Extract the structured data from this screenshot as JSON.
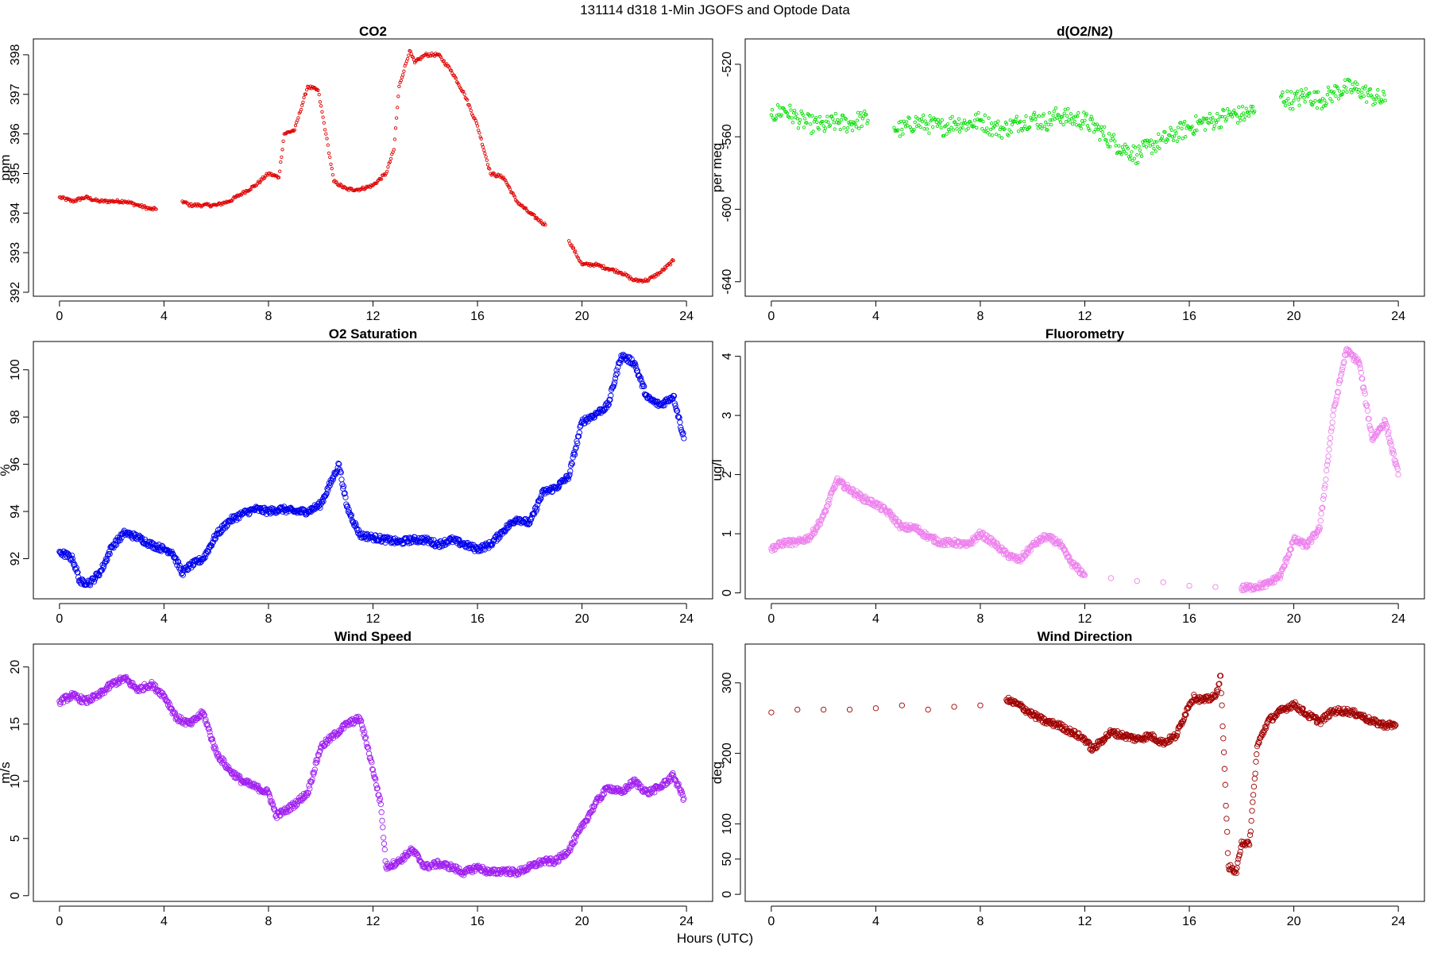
{
  "figure": {
    "title": "131114   d318   1-Min  JGOFS and Optode Data",
    "xlabel": "Hours (UTC)"
  },
  "chart_data": [
    {
      "type": "scatter",
      "title": "CO2",
      "ylabel": "ppm",
      "color": "#e00000",
      "marker": "small-circle",
      "xlim": [
        -1,
        25
      ],
      "ylim": [
        391.9,
        398.4
      ],
      "xticks": [
        0,
        4,
        8,
        12,
        16,
        20,
        24
      ],
      "yticks": [
        392,
        393,
        394,
        395,
        396,
        397,
        398
      ],
      "x": [
        0.0,
        0.5,
        1.0,
        1.5,
        2.0,
        2.5,
        3.0,
        3.5,
        3.7,
        4.7,
        5.0,
        5.5,
        6.0,
        6.5,
        7.0,
        7.5,
        8.0,
        8.4,
        8.6,
        9.0,
        9.5,
        9.9,
        10.2,
        10.5,
        11.0,
        11.5,
        12.0,
        12.5,
        12.8,
        13.0,
        13.4,
        13.6,
        14.0,
        14.5,
        15.0,
        15.5,
        16.0,
        16.5,
        17.0,
        17.5,
        18.0,
        18.6,
        19.5,
        20.0,
        20.5,
        21.0,
        21.5,
        22.0,
        22.5,
        23.0,
        23.5
      ],
      "y": [
        394.4,
        394.3,
        394.4,
        394.3,
        394.3,
        394.3,
        394.2,
        394.1,
        394.1,
        394.3,
        394.2,
        394.2,
        394.2,
        394.3,
        394.5,
        394.7,
        395.0,
        394.9,
        396.0,
        396.1,
        397.2,
        397.1,
        396.0,
        394.8,
        394.6,
        394.6,
        394.7,
        395.0,
        395.6,
        397.2,
        398.1,
        397.8,
        398.0,
        398.0,
        397.6,
        397.0,
        396.2,
        395.0,
        394.9,
        394.3,
        394.0,
        393.7,
        393.3,
        392.7,
        392.7,
        392.6,
        392.5,
        392.3,
        392.3,
        392.5,
        392.8
      ]
    },
    {
      "type": "scatter",
      "title": "d(O2/N2)",
      "ylabel": "per meg",
      "color": "#00dd00",
      "marker": "small-circle",
      "xlim": [
        -1,
        25
      ],
      "ylim": [
        -648,
        -506
      ],
      "xticks": [
        0,
        4,
        8,
        12,
        16,
        20,
        24
      ],
      "yticks": [
        -520,
        -560,
        -600,
        -640
      ],
      "x": [
        0.0,
        0.5,
        1.0,
        1.5,
        2.0,
        2.5,
        3.0,
        3.5,
        3.7,
        4.7,
        5.0,
        5.5,
        6.0,
        6.5,
        7.0,
        7.5,
        8.0,
        8.5,
        8.9,
        9.5,
        10.0,
        10.5,
        11.0,
        11.5,
        12.0,
        12.5,
        13.0,
        13.3,
        14.0,
        14.5,
        15.0,
        15.5,
        16.0,
        16.5,
        17.0,
        17.5,
        18.0,
        18.5,
        19.5,
        20.0,
        20.5,
        21.0,
        21.5,
        22.0,
        22.5,
        23.0,
        23.5
      ],
      "y": [
        -548,
        -545,
        -550,
        -553,
        -554,
        -552,
        -553,
        -550,
        -551,
        -555,
        -556,
        -552,
        -553,
        -555,
        -552,
        -553,
        -551,
        -555,
        -556,
        -552,
        -550,
        -552,
        -548,
        -550,
        -551,
        -556,
        -562,
        -565,
        -570,
        -565,
        -562,
        -558,
        -555,
        -552,
        -551,
        -548,
        -548,
        -546,
        -538,
        -540,
        -537,
        -540,
        -536,
        -533,
        -534,
        -538,
        -540
      ]
    },
    {
      "type": "scatter",
      "title": "O2 Saturation",
      "ylabel": "%",
      "color": "#0000ee",
      "marker": "large-circle",
      "xlim": [
        -1,
        25
      ],
      "ylim": [
        90.3,
        101.2
      ],
      "xticks": [
        0,
        4,
        8,
        12,
        16,
        20,
        24
      ],
      "yticks": [
        92,
        94,
        96,
        98,
        100
      ],
      "x": [
        0.0,
        0.5,
        0.8,
        1.2,
        1.6,
        2.0,
        2.5,
        3.0,
        3.5,
        4.0,
        4.3,
        4.7,
        5.0,
        5.5,
        6.0,
        6.5,
        7.0,
        7.5,
        8.0,
        8.5,
        9.0,
        9.5,
        10.0,
        10.5,
        10.7,
        11.0,
        11.5,
        12.0,
        12.5,
        13.0,
        13.5,
        14.0,
        14.5,
        15.0,
        15.5,
        16.0,
        16.5,
        17.0,
        17.5,
        18.0,
        18.5,
        19.0,
        19.5,
        20.0,
        20.5,
        21.0,
        21.5,
        22.0,
        22.5,
        23.0,
        23.5,
        23.9
      ],
      "y": [
        92.3,
        92.0,
        91.0,
        91.0,
        91.5,
        92.5,
        93.1,
        92.9,
        92.6,
        92.4,
        92.3,
        91.4,
        91.7,
        92.0,
        93.0,
        93.6,
        93.9,
        94.1,
        94.0,
        94.1,
        94.0,
        94.0,
        94.3,
        95.5,
        96.0,
        94.2,
        93.0,
        92.9,
        92.8,
        92.7,
        92.8,
        92.8,
        92.6,
        92.8,
        92.6,
        92.4,
        92.6,
        93.2,
        93.7,
        93.5,
        94.8,
        95.0,
        95.5,
        97.8,
        98.1,
        98.5,
        100.6,
        100.3,
        98.8,
        98.5,
        98.9,
        97.1
      ]
    },
    {
      "type": "scatter",
      "title": "Fluorometry",
      "ylabel": "ug/l",
      "color": "#ee82ee",
      "marker": "large-circle",
      "xlim": [
        -1,
        25
      ],
      "ylim": [
        -0.1,
        4.25
      ],
      "xticks": [
        0,
        4,
        8,
        12,
        16,
        20,
        24
      ],
      "yticks": [
        0,
        1,
        2,
        3,
        4
      ],
      "x": [
        0.0,
        0.5,
        1.0,
        1.5,
        2.0,
        2.5,
        3.0,
        3.5,
        4.0,
        4.5,
        5.0,
        5.5,
        6.0,
        6.5,
        7.0,
        7.5,
        8.0,
        8.5,
        9.0,
        9.5,
        10.0,
        10.5,
        11.0,
        11.5,
        12.0,
        13.0,
        14.0,
        15.0,
        16.0,
        17.0,
        18.0,
        18.5,
        19.0,
        19.5,
        20.0,
        20.5,
        21.0,
        21.5,
        22.0,
        22.5,
        23.0,
        23.5,
        24.0
      ],
      "y": [
        0.75,
        0.85,
        0.85,
        0.95,
        1.3,
        1.9,
        1.75,
        1.6,
        1.5,
        1.35,
        1.1,
        1.1,
        0.95,
        0.85,
        0.85,
        0.8,
        1.0,
        0.85,
        0.65,
        0.55,
        0.8,
        0.95,
        0.85,
        0.5,
        0.3,
        0.25,
        0.2,
        0.18,
        0.12,
        0.1,
        0.08,
        0.1,
        0.15,
        0.3,
        0.9,
        0.8,
        1.1,
        3.0,
        4.1,
        3.9,
        2.6,
        2.9,
        2.0
      ]
    },
    {
      "type": "scatter",
      "title": "Wind Speed",
      "ylabel": "m/s",
      "color": "#a020f0",
      "marker": "large-circle",
      "xlim": [
        -1,
        25
      ],
      "ylim": [
        -0.5,
        22
      ],
      "xticks": [
        0,
        4,
        8,
        12,
        16,
        20,
        24
      ],
      "yticks": [
        0,
        5,
        10,
        15,
        20
      ],
      "x": [
        0.0,
        0.5,
        1.0,
        1.5,
        2.0,
        2.5,
        3.0,
        3.5,
        4.0,
        4.5,
        5.0,
        5.5,
        6.0,
        6.5,
        7.0,
        7.5,
        8.0,
        8.3,
        8.7,
        9.0,
        9.5,
        10.0,
        10.5,
        11.0,
        11.5,
        11.8,
        12.0,
        12.3,
        12.5,
        13.0,
        13.5,
        14.0,
        14.5,
        15.0,
        15.5,
        16.0,
        16.5,
        17.0,
        17.5,
        18.0,
        18.5,
        19.0,
        19.5,
        20.0,
        20.5,
        21.0,
        21.5,
        22.0,
        22.5,
        23.0,
        23.5,
        23.9
      ],
      "y": [
        17.0,
        17.5,
        17.0,
        17.5,
        18.5,
        19.0,
        18.0,
        18.5,
        17.5,
        15.5,
        15.0,
        16.0,
        12.5,
        11.0,
        10.0,
        9.5,
        9.0,
        7.0,
        7.5,
        8.0,
        9.0,
        13.0,
        14.0,
        15.0,
        15.5,
        13.0,
        11.0,
        8.0,
        2.5,
        3.0,
        4.0,
        2.5,
        2.8,
        2.5,
        2.0,
        2.5,
        2.0,
        2.2,
        2.0,
        2.5,
        3.0,
        3.0,
        4.0,
        6.0,
        8.0,
        9.5,
        9.0,
        10.0,
        9.0,
        9.5,
        10.5,
        8.5
      ]
    },
    {
      "type": "scatter",
      "title": "Wind Direction",
      "ylabel": "deg",
      "color": "#a00000",
      "marker": "large-circle",
      "xlim": [
        -1,
        25
      ],
      "ylim": [
        -10,
        355
      ],
      "xticks": [
        0,
        4,
        8,
        12,
        16,
        20,
        24
      ],
      "yticks": [
        0,
        50,
        100,
        200,
        300
      ],
      "x": [
        0.0,
        1.0,
        2.0,
        3.0,
        4.0,
        5.0,
        6.0,
        7.0,
        8.0,
        9.0,
        9.5,
        10.0,
        10.5,
        11.0,
        11.5,
        12.0,
        12.3,
        12.7,
        13.0,
        13.5,
        14.0,
        14.5,
        15.0,
        15.5,
        16.0,
        16.2,
        16.5,
        17.0,
        17.2,
        17.5,
        17.8,
        18.0,
        18.3,
        18.6,
        19.0,
        19.5,
        20.0,
        20.5,
        21.0,
        21.5,
        22.0,
        22.5,
        23.0,
        23.5,
        23.9
      ],
      "y": [
        258,
        262,
        262,
        262,
        264,
        268,
        262,
        266,
        268,
        276,
        268,
        255,
        245,
        240,
        230,
        220,
        205,
        220,
        230,
        225,
        220,
        225,
        215,
        225,
        270,
        280,
        275,
        280,
        310,
        40,
        30,
        75,
        70,
        210,
        245,
        260,
        270,
        255,
        245,
        260,
        260,
        255,
        245,
        240,
        240
      ]
    }
  ]
}
